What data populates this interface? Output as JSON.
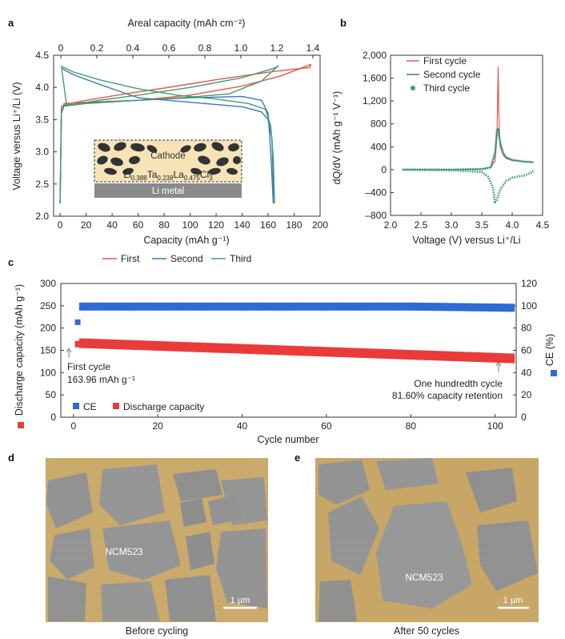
{
  "panels": {
    "a": {
      "letter": "a",
      "chart_data": {
        "type": "line",
        "xlabel": "Capacity (mAh g⁻¹)",
        "x2label": "Areal capacity (mAh cm⁻²)",
        "ylabel": "Voltage versus Li⁺/Li (V)",
        "xlim": [
          -5,
          200
        ],
        "ylim": [
          2.0,
          4.5
        ],
        "x2lim": [
          -0.04,
          1.44
        ],
        "x_ticks": [
          "0",
          "20",
          "40",
          "60",
          "80",
          "100",
          "120",
          "140",
          "160",
          "180",
          "200"
        ],
        "x2_ticks": [
          "0",
          "0.2",
          "0.4",
          "0.6",
          "0.8",
          "1.0",
          "1.2",
          "1.4"
        ],
        "y_ticks": [
          "2.0",
          "2.5",
          "3.0",
          "3.5",
          "4.0",
          "4.5"
        ],
        "legend_position": "bottom",
        "series": [
          {
            "name": "First",
            "color": "#e8554e",
            "charge": [
              [
                0,
                2.2
              ],
              [
                1,
                3.6
              ],
              [
                3,
                3.75
              ],
              [
                20,
                3.77
              ],
              [
                60,
                3.8
              ],
              [
                100,
                3.88
              ],
              [
                140,
                4.02
              ],
              [
                170,
                4.18
              ],
              [
                193,
                4.36
              ]
            ],
            "discharge": [
              [
                193,
                4.36
              ],
              [
                192,
                4.31
              ],
              [
                165,
                4.25
              ],
              [
                120,
                4.12
              ],
              [
                80,
                3.99
              ],
              [
                50,
                3.9
              ],
              [
                20,
                3.8
              ],
              [
                5,
                3.74
              ],
              [
                1,
                3.7
              ],
              [
                0,
                2.2
              ]
            ]
          },
          {
            "name": "Second",
            "color": "#3a78c2",
            "charge": [
              [
                0,
                2.2
              ],
              [
                1,
                3.6
              ],
              [
                3,
                3.72
              ],
              [
                20,
                3.76
              ],
              [
                60,
                3.8
              ],
              [
                100,
                3.84
              ],
              [
                140,
                3.86
              ],
              [
                155,
                3.8
              ],
              [
                160,
                3.6
              ],
              [
                162,
                3.0
              ],
              [
                164,
                2.2
              ]
            ],
            "discharge": [
              [
                164,
                2.2
              ],
              [
                164,
                2.5
              ],
              [
                163,
                3.2
              ],
              [
                160,
                3.5
              ],
              [
                155,
                3.62
              ],
              [
                140,
                3.7
              ],
              [
                100,
                3.77
              ],
              [
                60,
                3.84
              ],
              [
                30,
                4.05
              ],
              [
                10,
                4.2
              ],
              [
                1,
                4.3
              ]
            ]
          },
          {
            "name": "Third",
            "color": "#3f9f6a",
            "charge": [
              [
                0,
                2.2
              ],
              [
                1,
                3.6
              ],
              [
                3,
                3.71
              ],
              [
                20,
                3.75
              ],
              [
                60,
                3.8
              ],
              [
                100,
                3.85
              ],
              [
                130,
                3.9
              ],
              [
                155,
                4.1
              ],
              [
                168,
                4.34
              ]
            ],
            "discharge": [
              [
                168,
                4.34
              ],
              [
                165,
                4.3
              ],
              [
                140,
                4.15
              ],
              [
                100,
                4.0
              ],
              [
                60,
                3.88
              ],
              [
                30,
                3.8
              ],
              [
                5,
                3.72
              ],
              [
                1,
                4.33
              ]
            ]
          },
          {
            "name": "Third discharge",
            "color": "#3f9f6a",
            "points": [
              [
                1,
                4.33
              ],
              [
                10,
                4.24
              ],
              [
                30,
                4.12
              ],
              [
                60,
                3.98
              ],
              [
                90,
                3.88
              ],
              [
                120,
                3.82
              ],
              [
                145,
                3.75
              ],
              [
                158,
                3.66
              ],
              [
                162,
                3.4
              ],
              [
                164,
                2.9
              ],
              [
                165,
                2.2
              ]
            ]
          }
        ],
        "inset": {
          "cathode": "Cathode",
          "formula_parts": [
            "Li",
            "0.388",
            "Ta",
            "0.238",
            "La",
            "0.475",
            "Cl",
            "3"
          ],
          "metal": "Li metal"
        }
      }
    },
    "b": {
      "letter": "b",
      "chart_data": {
        "type": "line",
        "xlabel": "Voltage (V) versus Li⁺/Li",
        "ylabel": "dQ/dV (mAh g⁻¹ V⁻¹)",
        "xlim": [
          2.0,
          4.5
        ],
        "ylim": [
          -800,
          2000
        ],
        "x_ticks": [
          "2.0",
          "2.5",
          "3.0",
          "3.5",
          "4.0",
          "4.5"
        ],
        "y_ticks": [
          "–800",
          "–400",
          "0",
          "400",
          "800",
          "1,200",
          "1,600",
          "2,000"
        ],
        "legend_position": "top-right",
        "series": [
          {
            "name": "First cycle",
            "color": "#e8554e",
            "x": [
              2.2,
              3.0,
              3.5,
              3.65,
              3.72,
              3.75,
              3.77,
              3.78,
              3.8,
              3.85,
              3.9,
              4.0,
              4.2,
              4.35
            ],
            "y": [
              0,
              0,
              10,
              40,
              150,
              600,
              1800,
              1000,
              400,
              260,
              200,
              160,
              140,
              130
            ]
          },
          {
            "name": "Second cycle",
            "color": "#3a78c2",
            "x": [
              2.2,
              3.0,
              3.5,
              3.65,
              3.72,
              3.75,
              3.77,
              3.8,
              3.85,
              3.9,
              4.0,
              4.2,
              4.35
            ],
            "y": [
              0,
              0,
              10,
              40,
              300,
              700,
              720,
              500,
              300,
              220,
              170,
              140,
              130
            ]
          },
          {
            "name": "Third cycle",
            "color": "#3f9f6a",
            "x": [
              2.2,
              3.0,
              3.5,
              3.65,
              3.72,
              3.75,
              3.77,
              3.8,
              3.85,
              3.9,
              4.0,
              4.2,
              4.35
            ],
            "y": [
              0,
              0,
              10,
              40,
              300,
              680,
              700,
              480,
              290,
              210,
              170,
              140,
              130
            ]
          },
          {
            "name": "Third cycle reduction",
            "color": "#3f9f6a",
            "x": [
              4.35,
              4.3,
              4.2,
              4.0,
              3.9,
              3.8,
              3.75,
              3.72,
              3.7,
              3.68,
              3.6,
              3.5,
              3.0,
              2.2
            ],
            "y": [
              -20,
              -60,
              -100,
              -140,
              -200,
              -350,
              -530,
              -560,
              -450,
              -300,
              -120,
              -40,
              -10,
              0
            ]
          }
        ]
      }
    },
    "c": {
      "letter": "c",
      "chart_data": {
        "type": "scatter",
        "xlabel": "Cycle number",
        "ylabel": "Discharge capacity (mAh g⁻¹)",
        "y2label": "CE (%)",
        "xlim": [
          -3,
          105
        ],
        "ylim": [
          0,
          300
        ],
        "y2lim": [
          0,
          120
        ],
        "x_ticks": [
          "0",
          "20",
          "40",
          "60",
          "80",
          "100"
        ],
        "y_ticks": [
          "0",
          "50",
          "100",
          "150",
          "200",
          "250",
          "300"
        ],
        "y2_ticks": [
          "0",
          "20",
          "40",
          "60",
          "80",
          "100",
          "120"
        ],
        "legend_position": "bottom-left",
        "series": [
          {
            "name": "CE",
            "color": "#2e6bd6",
            "axis": "right",
            "first": 85.2,
            "rest": 99.3,
            "end": 98.2,
            "start_cycle": 2,
            "end_cycle": 104
          },
          {
            "name": "Discharge capacity",
            "color": "#ea3b3b",
            "axis": "left",
            "first": 163.96,
            "rest_start": 166,
            "end": 132,
            "start_cycle": 1,
            "end_cycle": 104
          }
        ],
        "annotations": {
          "first_line1": "First cycle",
          "first_line2": "163.96 mAh g⁻¹",
          "hundredth_line1": "One hundredth cycle",
          "hundredth_line2": "81.60% capacity retention"
        }
      }
    },
    "d": {
      "letter": "d",
      "label": "NCM523",
      "scale": "1 µm",
      "caption": "Before cycling"
    },
    "e": {
      "letter": "e",
      "label": "NCM523",
      "scale": "1 µm",
      "caption": "After 50 cycles"
    }
  },
  "colors": {
    "first": "#e8554e",
    "second": "#3a78c2",
    "third": "#3f9f6a",
    "ce": "#2e6bd6",
    "discharge": "#ea3b3b",
    "matrix": "#c9a867",
    "particle": "#8f8f8f"
  }
}
